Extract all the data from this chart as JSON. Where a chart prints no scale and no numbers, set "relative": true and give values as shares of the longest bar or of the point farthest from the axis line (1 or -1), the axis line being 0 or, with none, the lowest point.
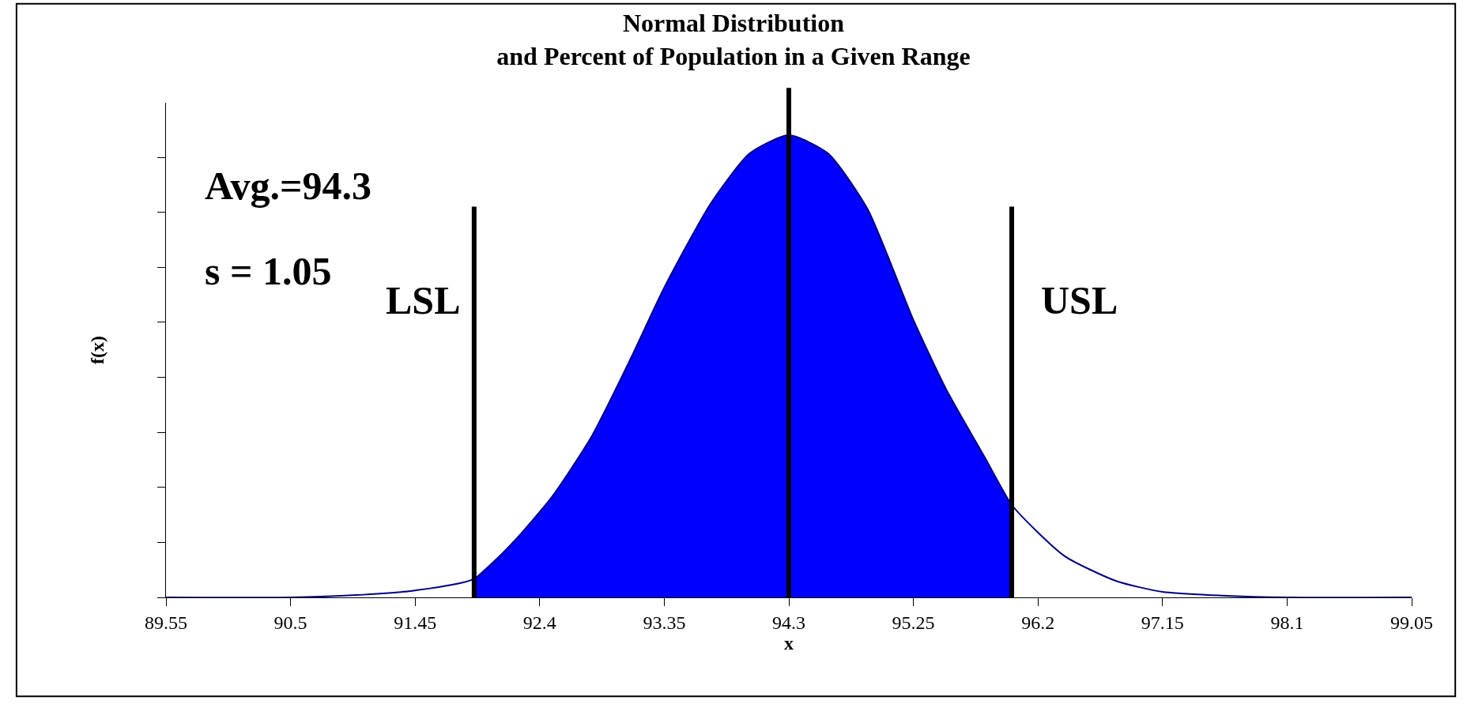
{
  "chart_data": {
    "type": "line",
    "title": "Normal Distribution\nand Percent of Population in a Given Range",
    "xlabel": "x",
    "ylabel": "f(x)",
    "relative": true,
    "xlim": [
      89.55,
      99.05
    ],
    "xticks": [
      89.55,
      90.5,
      91.45,
      92.4,
      93.35,
      94.3,
      95.25,
      96.2,
      97.15,
      98.1,
      99.05
    ],
    "tick_labels": "x",
    "marker": "none",
    "series": [
      {
        "type": "area",
        "color": "#0000ff",
        "x": [
          91.9,
          92.2,
          92.5,
          92.8,
          93.1,
          93.35,
          93.7,
          94.0,
          94.3,
          94.6,
          94.9,
          95.25,
          95.5,
          95.8,
          96.0
        ],
        "values": [
          0.04,
          0.12,
          0.22,
          0.35,
          0.52,
          0.67,
          0.85,
          0.96,
          1,
          0.96,
          0.84,
          0.6,
          0.45,
          0.3,
          0.2
        ]
      },
      {
        "color": "#000080",
        "x": [
          89.55,
          90.5,
          91.0,
          91.45,
          91.9,
          92.2,
          92.5,
          92.8,
          93.1,
          93.35,
          93.7,
          94.0,
          94.3,
          94.6,
          94.9,
          95.25,
          95.5,
          95.8,
          96.0,
          96.4,
          96.8,
          97.15,
          97.6,
          98.1,
          99.05
        ],
        "values": [
          0,
          0,
          0.005,
          0.015,
          0.04,
          0.12,
          0.22,
          0.35,
          0.52,
          0.67,
          0.85,
          0.96,
          1,
          0.96,
          0.84,
          0.6,
          0.45,
          0.3,
          0.2,
          0.09,
          0.035,
          0.012,
          0.004,
          0,
          0
        ]
      }
    ],
    "ref_lines": [
      {
        "axis": "x",
        "value": 91.9,
        "label": "LSL",
        "color": "#000000"
      },
      {
        "axis": "x",
        "value": 94.3,
        "color": "#000000"
      },
      {
        "axis": "x",
        "value": 96.0,
        "label": "USL",
        "color": "#000000"
      }
    ],
    "annotations": [
      "Avg.=94.3",
      "s = 1.05"
    ]
  }
}
